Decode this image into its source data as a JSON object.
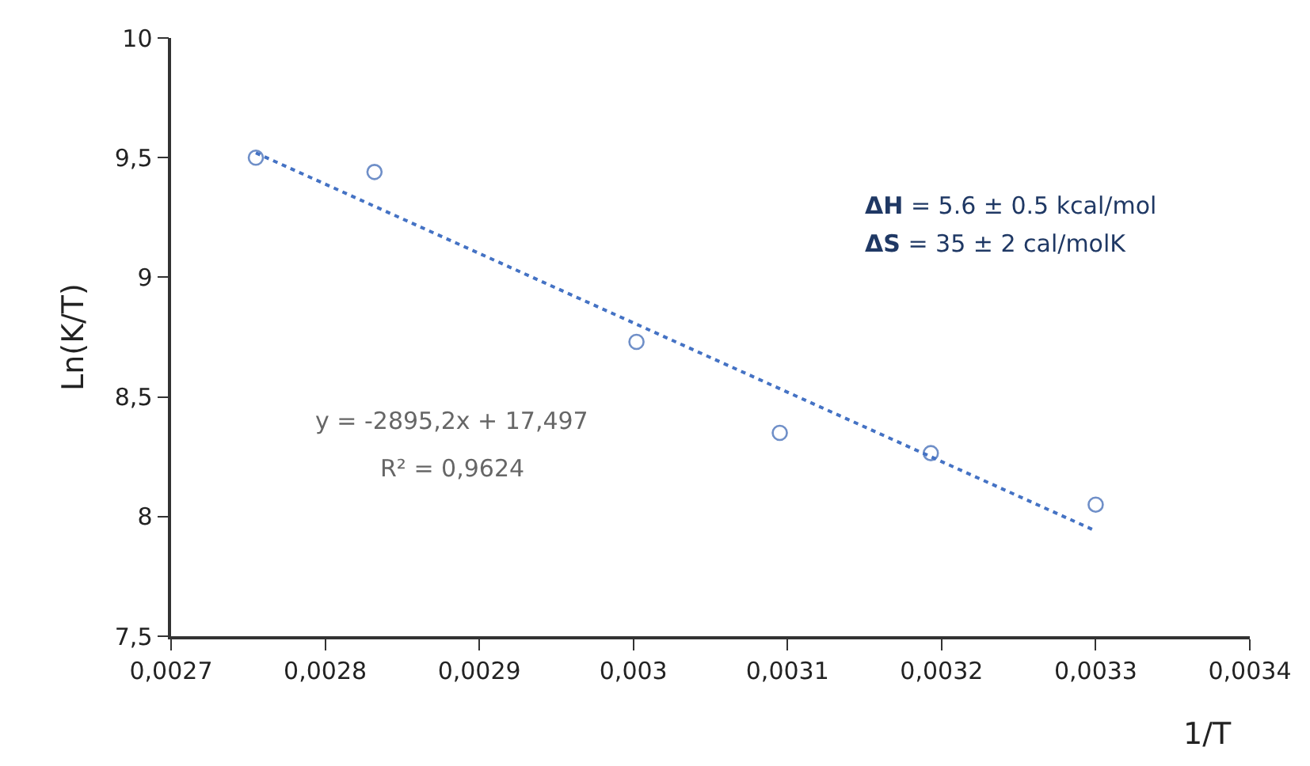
{
  "chart_data": {
    "type": "scatter",
    "xlabel": "1/T",
    "ylabel": "Ln(K/T)",
    "xlim": [
      0.0027,
      0.0034
    ],
    "xticks": [
      {
        "value": 0.0027,
        "label": "0,0027"
      },
      {
        "value": 0.0028,
        "label": "0,0028"
      },
      {
        "value": 0.0029,
        "label": "0,0029"
      },
      {
        "value": 0.003,
        "label": "0,003"
      },
      {
        "value": 0.0031,
        "label": "0,0031"
      },
      {
        "value": 0.0032,
        "label": "0,0032"
      },
      {
        "value": 0.0033,
        "label": "0,0033"
      },
      {
        "value": 0.0034,
        "label": "0,0034"
      }
    ],
    "ylim": [
      7.5,
      10
    ],
    "yticks": [
      {
        "value": 7.5,
        "label": "7,5"
      },
      8,
      {
        "value": 8.5,
        "label": "8,5"
      },
      9,
      {
        "value": 9.5,
        "label": "9,5"
      },
      10
    ],
    "series": [
      {
        "marker": "circle",
        "color": "#6f8fc8",
        "x": [
          0.002755,
          0.002832,
          0.003002,
          0.003095,
          0.003193,
          0.0033
        ],
        "values": [
          9.5,
          9.44,
          8.73,
          8.35,
          8.265,
          8.05
        ]
      },
      {
        "type": "line",
        "line_style": "dotted",
        "marker": "none",
        "color": "#4472c4",
        "x": [
          0.002755,
          0.0033
        ],
        "values": [
          9.52,
          7.94
        ]
      }
    ],
    "annotations": [
      "ΔH = 5.6 ± 0.5 kcal/mol",
      "ΔS = 35 ± 2 cal/molK",
      "y = -2895,2x + 17,497",
      "R² = 0,9624"
    ]
  }
}
